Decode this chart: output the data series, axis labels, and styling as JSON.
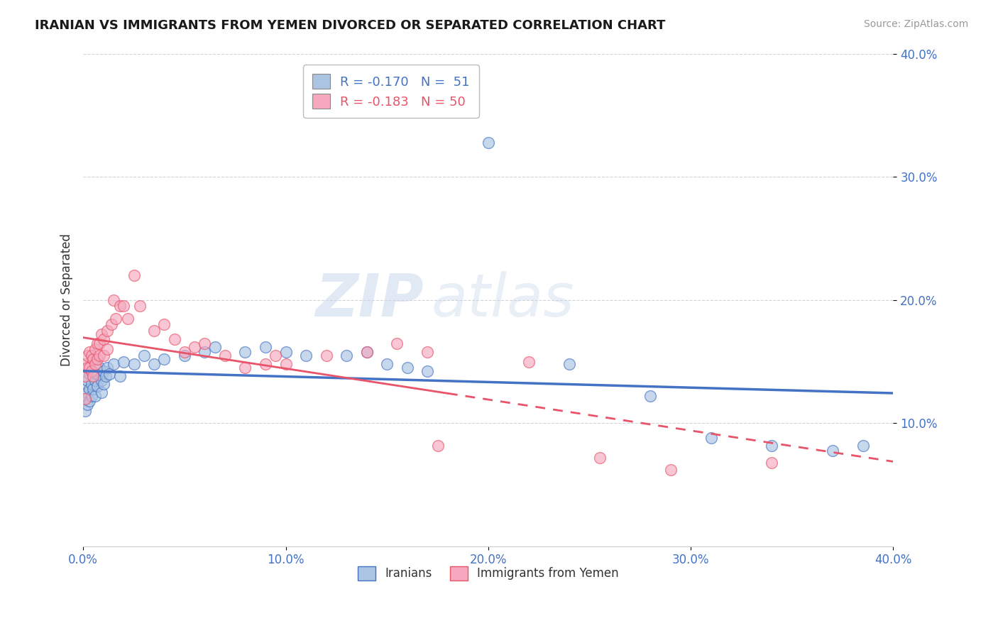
{
  "title": "IRANIAN VS IMMIGRANTS FROM YEMEN DIVORCED OR SEPARATED CORRELATION CHART",
  "source": "Source: ZipAtlas.com",
  "ylabel": "Divorced or Separated",
  "xlim": [
    0.0,
    0.4
  ],
  "ylim": [
    0.0,
    0.4
  ],
  "xtick_labels": [
    "0.0%",
    "10.0%",
    "20.0%",
    "30.0%",
    "40.0%"
  ],
  "xtick_vals": [
    0.0,
    0.1,
    0.2,
    0.3,
    0.4
  ],
  "ytick_labels": [
    "40.0%",
    "30.0%",
    "20.0%",
    "10.0%"
  ],
  "ytick_vals": [
    0.4,
    0.3,
    0.2,
    0.1
  ],
  "legend_r1": "R = -0.170",
  "legend_n1": "N =  51",
  "legend_r2": "R = -0.183",
  "legend_n2": "N = 50",
  "color_iranian": "#aac4e2",
  "color_yemen": "#f5a8be",
  "line_color_iranian": "#4472c4",
  "line_color_yemen": "#e8546a",
  "background_color": "#ffffff",
  "watermark_zip": "ZIP",
  "watermark_atlas": "atlas",
  "iranian_x": [
    0.001,
    0.001,
    0.001,
    0.002,
    0.002,
    0.002,
    0.003,
    0.003,
    0.003,
    0.004,
    0.004,
    0.005,
    0.005,
    0.006,
    0.006,
    0.007,
    0.007,
    0.008,
    0.009,
    0.009,
    0.01,
    0.01,
    0.011,
    0.012,
    0.013,
    0.015,
    0.018,
    0.02,
    0.025,
    0.03,
    0.035,
    0.04,
    0.05,
    0.06,
    0.065,
    0.08,
    0.09,
    0.1,
    0.11,
    0.13,
    0.14,
    0.15,
    0.16,
    0.17,
    0.2,
    0.24,
    0.28,
    0.31,
    0.34,
    0.37,
    0.385
  ],
  "iranian_y": [
    0.13,
    0.12,
    0.11,
    0.135,
    0.125,
    0.115,
    0.14,
    0.128,
    0.118,
    0.132,
    0.122,
    0.138,
    0.128,
    0.135,
    0.122,
    0.14,
    0.13,
    0.145,
    0.135,
    0.125,
    0.142,
    0.132,
    0.138,
    0.145,
    0.14,
    0.148,
    0.138,
    0.15,
    0.148,
    0.155,
    0.148,
    0.152,
    0.155,
    0.158,
    0.162,
    0.158,
    0.162,
    0.158,
    0.155,
    0.155,
    0.158,
    0.148,
    0.145,
    0.142,
    0.328,
    0.148,
    0.122,
    0.088,
    0.082,
    0.078,
    0.082
  ],
  "yemen_x": [
    0.001,
    0.001,
    0.001,
    0.002,
    0.002,
    0.003,
    0.003,
    0.004,
    0.004,
    0.005,
    0.005,
    0.006,
    0.006,
    0.007,
    0.007,
    0.008,
    0.008,
    0.009,
    0.01,
    0.01,
    0.012,
    0.012,
    0.014,
    0.015,
    0.016,
    0.018,
    0.02,
    0.022,
    0.025,
    0.028,
    0.035,
    0.04,
    0.045,
    0.05,
    0.055,
    0.06,
    0.07,
    0.08,
    0.09,
    0.095,
    0.1,
    0.12,
    0.14,
    0.155,
    0.17,
    0.175,
    0.22,
    0.255,
    0.29,
    0.34
  ],
  "yemen_y": [
    0.148,
    0.138,
    0.12,
    0.155,
    0.145,
    0.158,
    0.145,
    0.155,
    0.142,
    0.152,
    0.138,
    0.16,
    0.148,
    0.165,
    0.152,
    0.165,
    0.155,
    0.172,
    0.168,
    0.155,
    0.175,
    0.16,
    0.18,
    0.2,
    0.185,
    0.195,
    0.195,
    0.185,
    0.22,
    0.195,
    0.175,
    0.18,
    0.168,
    0.158,
    0.162,
    0.165,
    0.155,
    0.145,
    0.148,
    0.155,
    0.148,
    0.155,
    0.158,
    0.165,
    0.158,
    0.082,
    0.15,
    0.072,
    0.062,
    0.068
  ]
}
